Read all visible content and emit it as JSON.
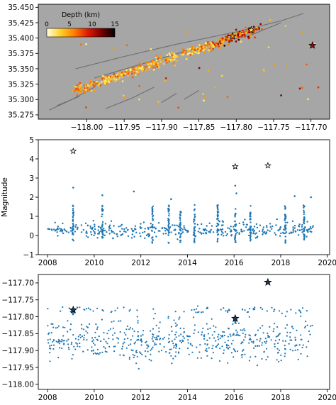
{
  "chart_data": [
    {
      "type": "scatter",
      "title": "",
      "xlabel": "",
      "ylabel": "",
      "xlim": [
        -118.065,
        -117.675
      ],
      "ylim": [
        35.268,
        35.455
      ],
      "x_ticks": [
        "−118.00",
        "−117.95",
        "−117.90",
        "−117.85",
        "−117.80",
        "−117.75",
        "−117.70"
      ],
      "x_tick_values": [
        -118.0,
        -117.95,
        -117.9,
        -117.85,
        -117.8,
        -117.75,
        -117.7
      ],
      "y_ticks": [
        "35.275",
        "35.300",
        "35.325",
        "35.350",
        "35.375",
        "35.400",
        "35.425",
        "35.450"
      ],
      "y_tick_values": [
        35.275,
        35.3,
        35.325,
        35.35,
        35.375,
        35.4,
        35.425,
        35.45
      ],
      "background": "#a6a6a6",
      "colorbar": {
        "label": "Depth (km)",
        "ticks": [
          "0",
          "5",
          "10",
          "15"
        ],
        "range": [
          0,
          15
        ],
        "colors": [
          "#ffffe0",
          "#ffd12e",
          "#ff8000",
          "#e01a00",
          "#7a0000",
          "#000000"
        ]
      },
      "faults": [
        [
          [
            -118.015,
            35.35
          ],
          [
            -117.95,
            35.37
          ],
          [
            -117.88,
            35.39
          ],
          [
            -117.8,
            35.41
          ],
          [
            -117.74,
            35.428
          ],
          [
            -117.71,
            35.44
          ]
        ],
        [
          [
            -117.99,
            35.335
          ],
          [
            -117.92,
            35.36
          ],
          [
            -117.85,
            35.385
          ],
          [
            -117.78,
            35.405
          ],
          [
            -117.74,
            35.425
          ]
        ],
        [
          [
            -118.05,
            35.283
          ],
          [
            -118.02,
            35.3
          ],
          [
            -117.99,
            35.32
          ]
        ],
        [
          [
            -118.04,
            35.29
          ],
          [
            -118.01,
            35.305
          ]
        ],
        [
          [
            -117.975,
            35.285
          ],
          [
            -117.94,
            35.302
          ],
          [
            -117.91,
            35.32
          ]
        ],
        [
          [
            -117.9,
            35.295
          ],
          [
            -117.88,
            35.31
          ]
        ],
        [
          [
            -117.87,
            35.3
          ],
          [
            -117.85,
            35.315
          ]
        ]
      ],
      "star_events": [
        {
          "x": -117.805,
          "y": 35.403,
          "depth": 6
        },
        {
          "x": -117.78,
          "y": 35.413,
          "depth": 3
        },
        {
          "x": -117.698,
          "y": 35.388,
          "depth": 11
        }
      ]
    },
    {
      "type": "scatter",
      "title": "",
      "xlabel": "",
      "ylabel": "Magnitude",
      "xlim": [
        2007.6,
        2020.1
      ],
      "ylim": [
        -1,
        5
      ],
      "x_ticks": [
        "2008",
        "2010",
        "2012",
        "2014",
        "2016",
        "2018",
        "2020"
      ],
      "x_tick_values": [
        2008,
        2010,
        2012,
        2014,
        2016,
        2018,
        2020
      ],
      "y_ticks": [
        "−1",
        "0",
        "1",
        "2",
        "3",
        "4",
        "5"
      ],
      "y_tick_values": [
        -1,
        0,
        1,
        2,
        3,
        4,
        5
      ],
      "marker_color": "#1f77b4",
      "star_events": [
        {
          "x": 2009.1,
          "y": 4.4
        },
        {
          "x": 2016.05,
          "y": 3.6
        },
        {
          "x": 2017.45,
          "y": 3.65
        }
      ]
    },
    {
      "type": "scatter",
      "title": "",
      "xlabel": "",
      "ylabel": "",
      "xlim": [
        2007.6,
        2020.1
      ],
      "ylim": [
        -118.015,
        -117.675
      ],
      "x_ticks": [
        "2008",
        "2010",
        "2012",
        "2014",
        "2016",
        "2018",
        "2020"
      ],
      "x_tick_values": [
        2008,
        2010,
        2012,
        2014,
        2016,
        2018,
        2020
      ],
      "y_ticks": [
        "−117.70",
        "−117.75",
        "−117.80",
        "−117.85",
        "−117.90",
        "−117.95",
        "−118.00"
      ],
      "y_tick_values": [
        -117.7,
        -117.75,
        -117.8,
        -117.85,
        -117.9,
        -117.95,
        -118.0
      ],
      "marker_color": "#1f77b4",
      "star_events": [
        {
          "x": 2009.1,
          "y": -117.78
        },
        {
          "x": 2016.05,
          "y": -117.805
        },
        {
          "x": 2017.45,
          "y": -117.698
        }
      ]
    }
  ]
}
